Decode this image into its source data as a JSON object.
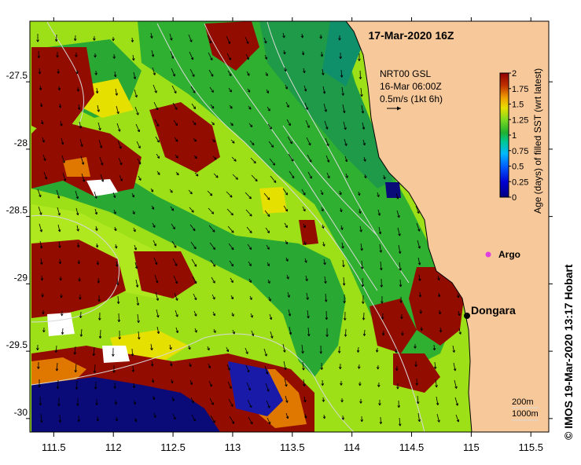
{
  "map": {
    "title": "17-Mar-2020 16Z",
    "current_info": {
      "line1": "NRT00 GSL",
      "line2": "16-Mar 06:00Z",
      "line3": "0.5m/s (1kt 6h)"
    },
    "colorbar": {
      "label": "Age (days) of filled SST (wrt latest)",
      "range": [
        0,
        2
      ],
      "ticks": [
        "0",
        "0.25",
        "0.5",
        "0.75",
        "1",
        "1.25",
        "1.5",
        "1.75",
        "2"
      ],
      "colors": [
        "#000080",
        "#0000c8",
        "#0050ff",
        "#00b0ff",
        "#00d0a0",
        "#20b030",
        "#60d020",
        "#a0e020",
        "#e8e000",
        "#f09000",
        "#c03000",
        "#900000"
      ]
    },
    "x_axis": {
      "ticks": [
        "111.5",
        "112",
        "112.5",
        "113",
        "113.5",
        "114",
        "114.5",
        "115",
        "115.5"
      ],
      "values": [
        111.5,
        112,
        112.5,
        113,
        113.5,
        114,
        114.5,
        115,
        115.5
      ],
      "range": [
        111.3,
        115.65
      ]
    },
    "y_axis": {
      "ticks": [
        "-27.5",
        "-28",
        "-28.5",
        "-29",
        "-29.5",
        "-30"
      ],
      "values": [
        -27.5,
        -28,
        -28.5,
        -29,
        -29.5,
        -30
      ],
      "range": [
        -30.1,
        -27.05
      ]
    },
    "places": [
      {
        "name": "Dongara",
        "lon": 114.93,
        "lat": -29.26
      },
      {
        "name": "Argo",
        "lon": 115.12,
        "lat": -28.83
      }
    ],
    "contour_legend": [
      "200m",
      "1000m"
    ],
    "colors": {
      "land": "#f7c89a",
      "marker_argo": "#e040e0",
      "contour": "#d8d8d8",
      "arrow": "#000000"
    }
  },
  "credit": "IMOS 19-Mar-2020 13:17 Hobart"
}
